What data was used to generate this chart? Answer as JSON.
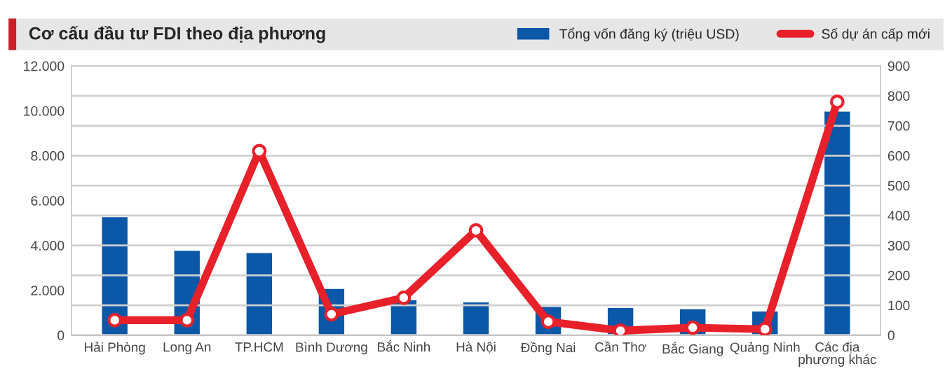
{
  "chart_data": {
    "type": "bar",
    "title": "Cơ cấu đầu tư FDI theo địa phương",
    "categories": [
      "Hải Phòng",
      "Long An",
      "TP.HCM",
      "Bình Dương",
      "Bắc Ninh",
      "Hà Nội",
      "Đồng Nai",
      "Cần Thơ",
      "Bắc Giang",
      "Quảng Ninh",
      "Các địa\nphương khác"
    ],
    "series": [
      {
        "name": "Tổng vốn đăng ký (triệu USD)",
        "color": "#0b57a8",
        "values": [
          5300,
          3800,
          3700,
          2100,
          1600,
          1500,
          1300,
          1250,
          1200,
          1100,
          10000
        ]
      },
      {
        "name": "Số dự án cấp mới",
        "type": "line",
        "axis": "y2",
        "color": "#e8202a",
        "marker": "circle",
        "values": [
          50,
          50,
          615,
          70,
          125,
          350,
          45,
          15,
          25,
          20,
          780
        ]
      }
    ],
    "ylim": [
      0,
      12000
    ],
    "yticks": [
      0,
      {
        "value": 2000,
        "label": "2.000"
      },
      {
        "value": 4000,
        "label": "4.000"
      },
      {
        "value": 6000,
        "label": "6.000"
      },
      {
        "value": 8000,
        "label": "8.000"
      },
      {
        "value": 10000,
        "label": "10.000"
      },
      {
        "value": 12000,
        "label": "12.000"
      }
    ],
    "y2lim": [
      0,
      900
    ],
    "y2ticks": [
      0,
      100,
      200,
      300,
      400,
      500,
      600,
      700,
      800,
      900
    ],
    "grid": "y",
    "legend": "top right"
  }
}
